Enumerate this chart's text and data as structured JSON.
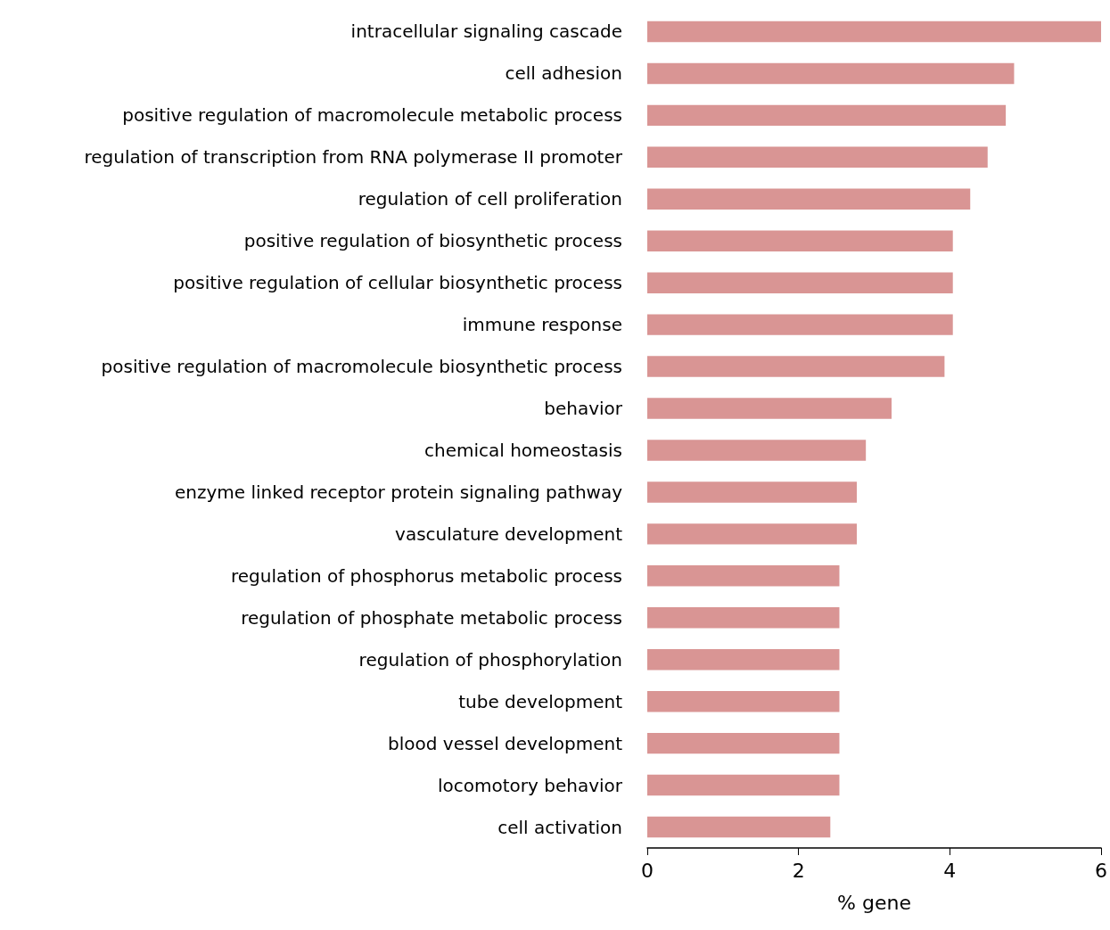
{
  "chart_data": {
    "type": "bar",
    "orientation": "horizontal",
    "xlabel": "% gene",
    "categories": [
      "intracellular signaling cascade",
      "cell adhesion",
      "positive regulation of macromolecule metabolic process",
      "regulation of transcription from RNA polymerase II promoter",
      "regulation of cell proliferation",
      "positive regulation of biosynthetic process",
      "positive regulation of cellular biosynthetic process",
      "immune response",
      "positive regulation of macromolecule biosynthetic process",
      "behavior",
      "chemical homeostasis",
      "enzyme linked receptor protein signaling pathway",
      "vasculature development",
      "regulation of phosphorus metabolic process",
      "regulation of phosphate metabolic process",
      "regulation of phosphorylation",
      "tube development",
      "blood vessel development",
      "locomotory behavior",
      "cell activation"
    ],
    "values": [
      6.0,
      4.85,
      4.74,
      4.5,
      4.27,
      4.04,
      4.04,
      4.04,
      3.93,
      3.23,
      2.89,
      2.77,
      2.77,
      2.54,
      2.54,
      2.54,
      2.54,
      2.54,
      2.54,
      2.42
    ],
    "color": "#d99594",
    "xlim": [
      0,
      6
    ],
    "xticks": [
      0,
      2,
      4,
      6
    ],
    "grid": false
  }
}
